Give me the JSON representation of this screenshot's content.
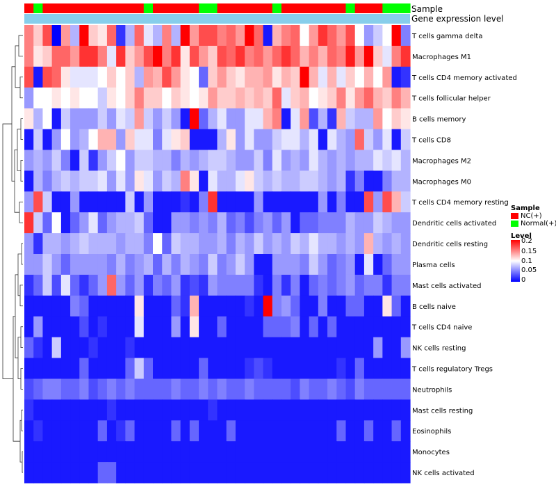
{
  "chart_data": {
    "type": "heatmap",
    "title": "",
    "annotation_tracks": [
      "Sample",
      "Gene expression level"
    ],
    "value_range": [
      0,
      0.2
    ],
    "colors": {
      "low": "#0000ff",
      "mid": "#ffffff",
      "high": "#ff0000",
      "nc": "#ff0000",
      "normal": "#00ff00",
      "gene_track": "#87ceeb"
    },
    "sample_groups": [
      "NC",
      "Normal",
      "NC",
      "NC",
      "NC",
      "NC",
      "NC",
      "NC",
      "NC",
      "NC",
      "NC",
      "NC",
      "NC",
      "Normal",
      "NC",
      "NC",
      "NC",
      "NC",
      "NC",
      "Normal",
      "Normal",
      "NC",
      "NC",
      "NC",
      "NC",
      "NC",
      "NC",
      "Normal",
      "NC",
      "NC",
      "NC",
      "NC",
      "NC",
      "NC",
      "NC",
      "Normal",
      "NC",
      "NC",
      "NC",
      "Normal",
      "Normal",
      "Normal"
    ],
    "rows": [
      "T cells gamma delta",
      "Macrophages M1",
      "T cells CD4 memory activated",
      "T cells follicular helper",
      "B cells memory",
      "T cells CD8",
      "Macrophages M2",
      "Macrophages M0",
      "T cells CD4 memory resting",
      "Dendritic cells activated",
      "Dendritic cells resting",
      "Plasma cells",
      "Mast cells activated",
      "B cells naive",
      "T cells CD4 naive",
      "NK cells resting",
      "T cells regulatory  Tregs",
      "Neutrophils",
      "Mast cells resting",
      "Eosinophils",
      "Monocytes",
      "NK cells activated"
    ],
    "matrix": [
      [
        0.15,
        0.12,
        0.17,
        0,
        0.14,
        0.07,
        0.2,
        0.12,
        0.11,
        0.16,
        0.02,
        0.07,
        0.16,
        0.09,
        0.07,
        0.15,
        0.07,
        0.2,
        0.14,
        0.17,
        0.17,
        0.15,
        0.16,
        0.14,
        0.2,
        0.16,
        0.01,
        0.13,
        0.15,
        0.16,
        0.1,
        0.14,
        0.18,
        0.16,
        0.14,
        0.17,
        0.1,
        0.06,
        0.08,
        0.1,
        0.2,
        0.05
      ],
      [
        0.15,
        0.11,
        0.12,
        0.16,
        0.16,
        0.14,
        0.18,
        0.18,
        0.15,
        0.09,
        0.18,
        0.12,
        0.14,
        0.17,
        0.2,
        0.15,
        0.18,
        0.11,
        0.17,
        0.14,
        0.12,
        0.17,
        0.16,
        0.18,
        0.15,
        0.16,
        0.14,
        0.16,
        0.18,
        0.16,
        0.13,
        0.15,
        0.13,
        0.16,
        0.15,
        0.19,
        0.14,
        0.2,
        0.12,
        0.09,
        0.15,
        0.18
      ],
      [
        0.17,
        0.01,
        0.17,
        0.16,
        0.11,
        0.09,
        0.09,
        0.09,
        0.1,
        0.12,
        0.1,
        0.12,
        0.07,
        0.14,
        0.13,
        0.17,
        0.14,
        0.11,
        0.1,
        0.04,
        0.12,
        0.14,
        0.12,
        0.11,
        0.13,
        0.13,
        0.14,
        0.11,
        0.13,
        0.12,
        0.2,
        0.13,
        0.09,
        0.13,
        0.09,
        0.12,
        0.1,
        0.13,
        0.1,
        0.14,
        0.01,
        0.02
      ],
      [
        0.06,
        0.1,
        0.1,
        0.11,
        0.1,
        0.11,
        0.1,
        0.1,
        0.08,
        0.11,
        0.1,
        0.12,
        0.15,
        0.12,
        0.12,
        0.1,
        0.12,
        0.11,
        0.1,
        0.11,
        0.14,
        0.12,
        0.12,
        0.13,
        0.12,
        0.13,
        0.12,
        0.16,
        0.09,
        0.12,
        0.13,
        0.1,
        0.11,
        0.12,
        0.15,
        0.11,
        0.14,
        0.16,
        0.13,
        0.12,
        0.15,
        0.13
      ],
      [
        0.11,
        0.07,
        0.1,
        0.01,
        0.08,
        0.06,
        0.06,
        0.06,
        0.08,
        0.06,
        0.09,
        0.08,
        0.14,
        0.08,
        0.06,
        0.08,
        0.06,
        0.01,
        0.2,
        0.04,
        0.07,
        0.09,
        0.06,
        0.06,
        0.09,
        0.09,
        0.13,
        0.15,
        0.01,
        0.09,
        0.14,
        0.03,
        0.07,
        0.02,
        0.13,
        0.08,
        0.07,
        0.07,
        0.14,
        0.1,
        0.12,
        0.11
      ],
      [
        0.01,
        0.08,
        0.01,
        0.06,
        0.1,
        0.06,
        0.07,
        0.1,
        0.13,
        0.13,
        0.06,
        0.12,
        0.09,
        0.09,
        0.05,
        0.09,
        0.11,
        0.12,
        0.01,
        0.01,
        0.01,
        0.07,
        0.11,
        0.06,
        0.09,
        0.06,
        0.06,
        0.08,
        0.09,
        0.09,
        0.07,
        0.09,
        0.01,
        0.09,
        0.07,
        0.06,
        0.16,
        0.08,
        0.06,
        0.09,
        0.01,
        0.08
      ],
      [
        0.06,
        0.07,
        0.06,
        0.08,
        0.05,
        0.01,
        0.08,
        0.02,
        0.06,
        0.08,
        0.1,
        0.06,
        0.08,
        0.08,
        0.07,
        0.07,
        0.05,
        0.07,
        0.06,
        0.07,
        0.08,
        0.08,
        0.07,
        0.06,
        0.06,
        0.08,
        0.05,
        0.09,
        0.06,
        0.07,
        0.06,
        0.09,
        0.07,
        0.06,
        0.07,
        0.06,
        0.07,
        0.07,
        0.09,
        0.08,
        0.09,
        0.07
      ],
      [
        0.01,
        0.07,
        0.05,
        0.07,
        0.08,
        0.07,
        0.08,
        0.08,
        0.09,
        0.06,
        0.09,
        0.06,
        0.11,
        0.09,
        0.06,
        0.08,
        0.07,
        0.15,
        0.11,
        0.01,
        0.09,
        0.07,
        0.07,
        0.09,
        0.11,
        0.08,
        0.07,
        0.08,
        0.07,
        0.07,
        0.08,
        0.08,
        0.07,
        0.06,
        0.07,
        0.02,
        0.05,
        0.01,
        0.01,
        0.05,
        0.07,
        0.07
      ],
      [
        0.06,
        0.17,
        0.08,
        0.01,
        0.01,
        0.06,
        0.01,
        0.01,
        0.01,
        0.01,
        0.01,
        0.08,
        0.01,
        0.06,
        0.01,
        0.01,
        0.01,
        0.02,
        0.01,
        0.05,
        0.18,
        0.01,
        0.01,
        0.01,
        0.01,
        0.06,
        0.01,
        0.01,
        0.01,
        0.01,
        0.01,
        0.01,
        0.06,
        0.01,
        0.05,
        0.01,
        0.01,
        0.17,
        0.06,
        0.17,
        0.13,
        0.08
      ],
      [
        0.18,
        0.08,
        0.04,
        0.1,
        0.01,
        0.04,
        0.06,
        0.09,
        0.04,
        0.06,
        0.07,
        0.07,
        0.08,
        0.04,
        0.01,
        0.01,
        0.06,
        0.06,
        0.05,
        0.06,
        0.05,
        0.07,
        0.04,
        0.05,
        0.03,
        0.05,
        0.06,
        0.04,
        0.06,
        0.01,
        0.04,
        0.04,
        0.05,
        0.05,
        0.05,
        0.07,
        0.06,
        0.06,
        0.08,
        0.07,
        0.06,
        0.06
      ],
      [
        0.06,
        0.02,
        0.07,
        0.07,
        0.06,
        0.07,
        0.08,
        0.07,
        0.07,
        0.07,
        0.06,
        0.07,
        0.07,
        0.05,
        0.1,
        0.04,
        0.08,
        0.07,
        0.07,
        0.06,
        0.06,
        0.07,
        0.05,
        0.07,
        0.06,
        0.08,
        0.06,
        0.07,
        0.06,
        0.08,
        0.07,
        0.09,
        0.07,
        0.07,
        0.06,
        0.07,
        0.06,
        0.13,
        0.07,
        0.06,
        0.07,
        0.06
      ],
      [
        0.06,
        0.06,
        0.08,
        0.06,
        0.04,
        0.06,
        0.06,
        0.06,
        0.06,
        0.05,
        0.07,
        0.05,
        0.06,
        0.07,
        0.04,
        0.07,
        0.05,
        0.07,
        0.06,
        0.05,
        0.08,
        0.05,
        0.06,
        0.08,
        0.06,
        0.01,
        0.01,
        0.06,
        0.06,
        0.06,
        0.05,
        0.08,
        0.06,
        0.04,
        0.05,
        0.06,
        0.01,
        0.09,
        0.01,
        0.04,
        0.06,
        0.06
      ],
      [
        0.02,
        0.04,
        0.08,
        0.03,
        0.09,
        0.04,
        0.02,
        0.04,
        0.06,
        0.16,
        0.06,
        0.04,
        0.06,
        0.02,
        0.05,
        0.04,
        0.06,
        0.02,
        0.03,
        0.02,
        0.06,
        0.05,
        0.05,
        0.05,
        0.05,
        0.02,
        0.01,
        0.05,
        0.02,
        0.05,
        0.01,
        0.04,
        0.05,
        0.04,
        0.05,
        0.06,
        0.04,
        0.05,
        0.05,
        0.02,
        0.05,
        0.05
      ],
      [
        0.01,
        0.01,
        0.01,
        0.01,
        0.01,
        0.05,
        0.04,
        0.01,
        0.01,
        0.01,
        0.01,
        0.01,
        0.11,
        0.01,
        0.01,
        0.01,
        0.04,
        0.02,
        0.13,
        0.01,
        0.01,
        0.01,
        0.01,
        0.01,
        0.02,
        0.01,
        0.2,
        0.05,
        0.06,
        0.04,
        0.01,
        0.01,
        0.05,
        0.01,
        0.01,
        0.04,
        0.04,
        0.01,
        0.01,
        0.11,
        0.04,
        0.01
      ],
      [
        0.01,
        0.06,
        0.01,
        0.01,
        0.01,
        0.01,
        0.03,
        0.01,
        0.02,
        0.01,
        0.01,
        0.01,
        0.09,
        0.01,
        0.01,
        0.01,
        0.06,
        0.01,
        0.11,
        0.01,
        0.01,
        0.04,
        0.01,
        0.01,
        0.01,
        0.01,
        0.04,
        0.04,
        0.04,
        0.05,
        0.01,
        0.04,
        0.01,
        0.04,
        0.01,
        0.01,
        0.01,
        0.01,
        0.01,
        0.01,
        0.01,
        0.01
      ],
      [
        0.04,
        0.02,
        0.01,
        0.08,
        0.01,
        0.01,
        0.01,
        0.02,
        0.01,
        0.01,
        0.01,
        0.02,
        0.01,
        0.01,
        0.01,
        0.01,
        0.01,
        0.01,
        0.01,
        0.01,
        0.01,
        0.01,
        0.01,
        0.01,
        0.01,
        0.01,
        0.01,
        0.01,
        0.01,
        0.01,
        0.01,
        0.01,
        0.01,
        0.01,
        0.01,
        0.01,
        0.01,
        0.01,
        0.06,
        0.01,
        0.01,
        0.06
      ],
      [
        0.01,
        0.01,
        0.01,
        0.01,
        0.01,
        0.01,
        0.04,
        0.01,
        0.01,
        0.01,
        0.01,
        0.04,
        0.08,
        0.04,
        0.01,
        0.01,
        0.01,
        0.01,
        0.01,
        0.04,
        0.01,
        0.01,
        0.01,
        0.01,
        0.02,
        0.03,
        0.02,
        0.01,
        0.01,
        0.01,
        0.01,
        0.01,
        0.01,
        0.01,
        0.02,
        0.01,
        0.04,
        0.01,
        0.01,
        0.01,
        0.01,
        0.01
      ],
      [
        0.03,
        0.04,
        0.05,
        0.05,
        0.04,
        0.04,
        0.05,
        0.03,
        0.04,
        0.05,
        0.04,
        0.05,
        0.04,
        0.04,
        0.04,
        0.04,
        0.05,
        0.04,
        0.04,
        0.05,
        0.04,
        0.05,
        0.04,
        0.04,
        0.05,
        0.04,
        0.04,
        0.04,
        0.04,
        0.03,
        0.05,
        0.04,
        0.04,
        0.05,
        0.04,
        0.03,
        0.05,
        0.04,
        0.04,
        0.04,
        0.04,
        0.04
      ],
      [
        0.02,
        0.01,
        0.01,
        0.01,
        0.01,
        0.01,
        0.01,
        0.01,
        0.01,
        0.02,
        0.01,
        0.01,
        0.01,
        0.01,
        0.01,
        0.01,
        0.01,
        0.01,
        0.01,
        0.01,
        0.02,
        0.01,
        0.01,
        0.01,
        0.01,
        0.01,
        0.01,
        0.01,
        0.01,
        0.01,
        0.01,
        0.01,
        0.01,
        0.01,
        0.01,
        0.01,
        0.01,
        0.01,
        0.01,
        0.01,
        0.01,
        0.01
      ],
      [
        0.01,
        0.02,
        0.01,
        0.01,
        0.01,
        0.01,
        0.01,
        0.01,
        0.04,
        0.01,
        0.02,
        0.04,
        0.01,
        0.01,
        0.01,
        0.01,
        0.04,
        0.01,
        0.04,
        0.01,
        0.01,
        0.01,
        0.04,
        0.01,
        0.01,
        0.01,
        0.01,
        0.01,
        0.01,
        0.01,
        0.01,
        0.01,
        0.01,
        0.01,
        0.04,
        0.01,
        0.01,
        0.04,
        0.01,
        0.01,
        0.04,
        0.01
      ],
      [
        0.01,
        0.01,
        0.01,
        0.01,
        0.01,
        0.01,
        0.01,
        0.01,
        0.01,
        0.01,
        0.01,
        0.01,
        0.01,
        0.01,
        0.01,
        0.01,
        0.01,
        0.01,
        0.01,
        0.01,
        0.01,
        0.01,
        0.01,
        0.01,
        0.01,
        0.01,
        0.01,
        0.01,
        0.01,
        0.01,
        0.01,
        0.01,
        0.01,
        0.01,
        0.01,
        0.01,
        0.01,
        0.01,
        0.01,
        0.01,
        0.01,
        0.01
      ],
      [
        0.01,
        0.01,
        0.01,
        0.01,
        0.01,
        0.01,
        0.01,
        0.01,
        0.04,
        0.04,
        0.01,
        0.01,
        0.01,
        0.01,
        0.01,
        0.01,
        0.01,
        0.01,
        0.01,
        0.01,
        0.01,
        0.01,
        0.01,
        0.01,
        0.01,
        0.01,
        0.01,
        0.01,
        0.01,
        0.01,
        0.01,
        0.01,
        0.01,
        0.01,
        0.01,
        0.01,
        0.01,
        0.01,
        0.01,
        0.01,
        0.01,
        0.01
      ]
    ],
    "legend": {
      "sample_title": "Sample",
      "sample_entries": [
        "NC(+)",
        "Normal(+)"
      ],
      "level_title": "Level",
      "level_ticks": [
        "0.2",
        "0.15",
        "0.1",
        "0.05",
        "0"
      ]
    }
  }
}
